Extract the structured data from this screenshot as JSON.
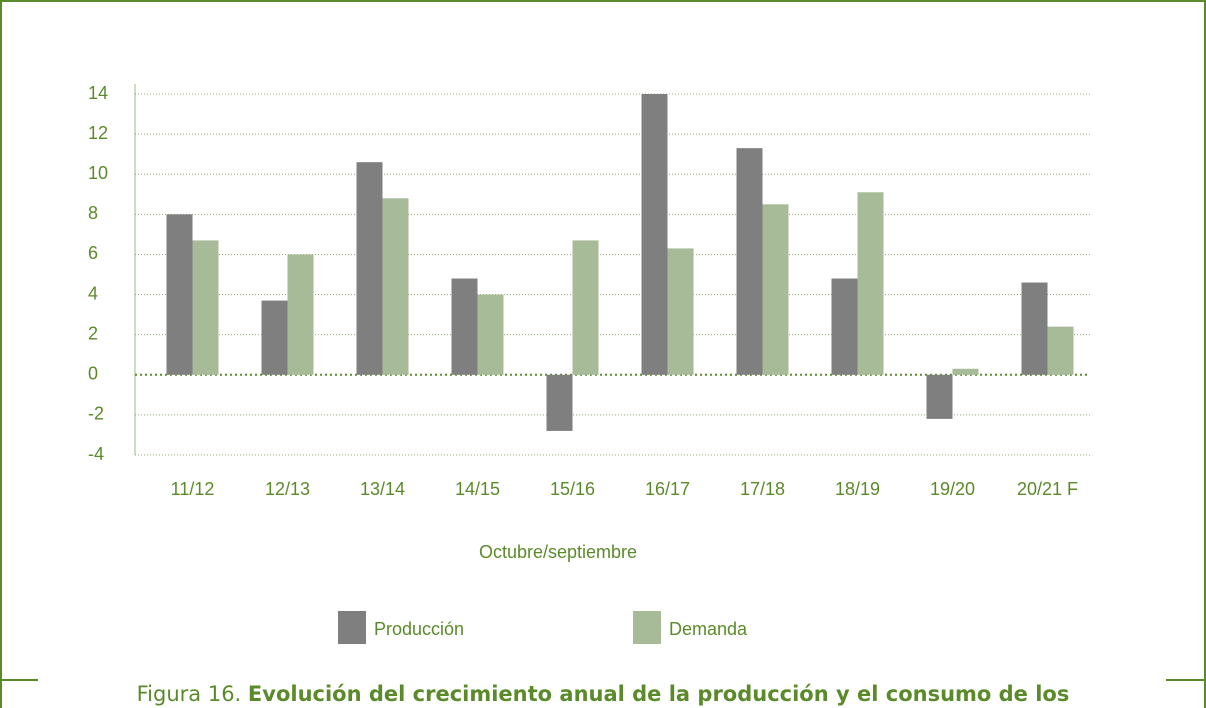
{
  "chart_data": {
    "type": "bar",
    "categories": [
      "11/12",
      "12/13",
      "13/14",
      "14/15",
      "15/16",
      "16/17",
      "17/18",
      "18/19",
      "19/20",
      "20/21 F"
    ],
    "series": [
      {
        "name": "Producción",
        "color": "#7f7f7f",
        "values": [
          8,
          3.7,
          10.6,
          4.8,
          -2.8,
          14,
          11.3,
          4.8,
          -2.2,
          4.6
        ]
      },
      {
        "name": "Demanda",
        "color": "#a8bb98",
        "values": [
          6.7,
          6.0,
          8.8,
          4.0,
          6.7,
          6.3,
          8.5,
          9.1,
          0.3,
          2.4
        ]
      }
    ],
    "xlabel": "Octubre/septiembre",
    "ylim": [
      -4,
      14
    ],
    "yticks": [
      -4,
      -2,
      0,
      2,
      4,
      6,
      8,
      10,
      12,
      14
    ],
    "grid": true,
    "caption": {
      "label": "Figura 16.",
      "title": "Evolución del crecimiento anual de la producción y el consumo de los"
    }
  }
}
